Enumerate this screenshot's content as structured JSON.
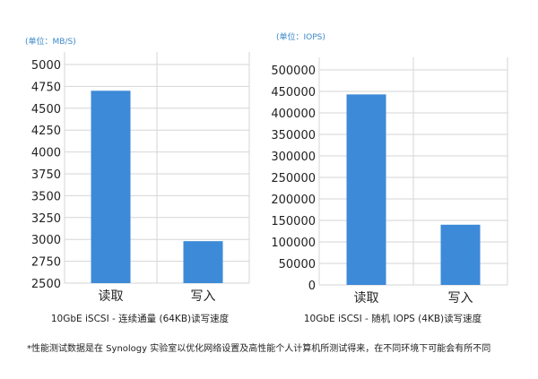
{
  "chart_data": [
    {
      "type": "bar",
      "unit_label": "(单位：MB/S)",
      "categories": [
        "读取",
        "写入"
      ],
      "values": [
        4700,
        2980
      ],
      "ylim": [
        2500,
        5000
      ],
      "yticks": [
        "5000",
        "4750",
        "4500",
        "4250",
        "4000",
        "3750",
        "3500",
        "3250",
        "3000",
        "2750",
        "2500"
      ],
      "caption": "10GbE iSCSI - 连续通量 (64KB)读写速度",
      "bar_color": "#3d8ad8",
      "grid": true
    },
    {
      "type": "bar",
      "unit_label": "(单位：IOPS)",
      "categories": [
        "读取",
        "写入"
      ],
      "values": [
        443000,
        140000
      ],
      "ylim": [
        0,
        500000
      ],
      "yticks": [
        "500000",
        "450000",
        "400000",
        "350000",
        "300000",
        "250000",
        "200000",
        "150000",
        "100000",
        "50000",
        "0"
      ],
      "caption": "10GbE iSCSI - 随机 IOPS (4KB)读写速度",
      "bar_color": "#3d8ad8",
      "grid": true
    }
  ],
  "footnote": "*性能测试数据是在 Synology 实验室以优化网络设置及高性能个人计算机所测试得来，在不同环境下可能会有所不同"
}
